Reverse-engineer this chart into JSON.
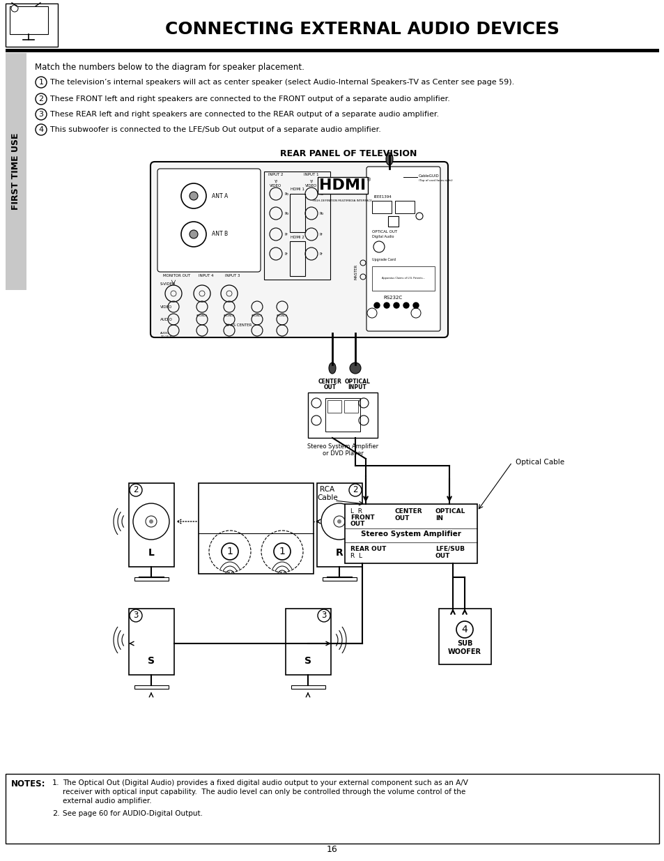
{
  "title": "CONNECTING EXTERNAL AUDIO DEVICES",
  "page_number": "16",
  "sidebar_text": "FIRST TIME USE",
  "intro_text": "Match the numbers below to the diagram for speaker placement.",
  "item1": "The television’s internal speakers will act as center speaker (select Audio-Internal Speakers-TV as Center see page 59).",
  "item2": "These FRONT left and right speakers are connected to the FRONT output of a separate audio amplifier.",
  "item3": "These REAR left and right speakers are connected to the REAR output of a separate audio amplifier.",
  "item4": "This subwoofer is connected to the LFE/Sub Out output of a separate audio amplifier.",
  "rear_panel_label": "REAR PANEL OF TELEVISION",
  "amp_label": "Stereo System Amplifier\nor DVD Player",
  "rca_label": "RCA\nCable",
  "optical_label": "Optical Cable",
  "amp2_label": "Stereo System Amplifier",
  "notes_label": "NOTES:",
  "note1a": "The Optical Out (Digital Audio) provides a fixed digital audio output to your external component such as an A/V",
  "note1b": "receiver with optical input capability.  The audio level can only be controlled through the volume control of the",
  "note1c": "external audio amplifier.",
  "note2": "See page 60 for AUDIO-Digital Output.",
  "bg_color": "#ffffff",
  "text_color": "#000000",
  "sidebar_bg": "#c8c8c8"
}
